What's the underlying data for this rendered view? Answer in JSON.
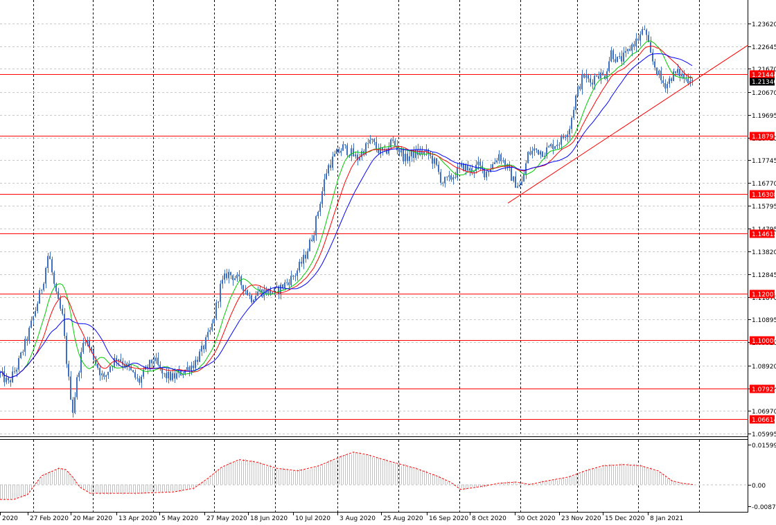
{
  "chart_data": [
    {
      "type": "candlestick",
      "instrument_panel": "price",
      "ylim": [
        1.05995,
        1.2362
      ],
      "y_ticks": [
        "1.23620",
        "1.22645",
        "1.21670",
        "1.20670",
        "1.19695",
        "1.18720",
        "1.17745",
        "1.16770",
        "1.15795",
        "1.14795",
        "1.13820",
        "1.12845",
        "1.11870",
        "1.10895",
        "1.09920",
        "1.08920",
        "1.07945",
        "1.06970",
        "1.05995"
      ],
      "x_labels": [
        "2020",
        "27 Feb 2020",
        "20 Mar 2020",
        "13 Apr 2020",
        "5 May 2020",
        "27 May 2020",
        "18 Jun 2020",
        "10 Jul 2020",
        "3 Aug 2020",
        "25 Aug 2020",
        "16 Sep 2020",
        "8 Oct 2020",
        "30 Oct 2020",
        "23 Nov 2020",
        "15 Dec 2020",
        "8 Jan 2021"
      ],
      "horizontal_levels": [
        {
          "value": 1.21444,
          "label": "1.21444",
          "color": "#ff0000"
        },
        {
          "value": 1.18793,
          "label": "1.18793",
          "color": "#ff0000"
        },
        {
          "value": 1.16308,
          "label": "1.16308",
          "color": "#ff0000"
        },
        {
          "value": 1.14612,
          "label": "1.14612",
          "color": "#ff0000"
        },
        {
          "value": 1.12007,
          "label": "1.12007",
          "color": "#ff0000"
        },
        {
          "value": 1.1,
          "label": "1.10000",
          "color": "#ff0000"
        },
        {
          "value": 1.07922,
          "label": "1.07922",
          "color": "#ff0000"
        },
        {
          "value": 1.06614,
          "label": "1.06614",
          "color": "#ff0000"
        }
      ],
      "current_price": {
        "value": 1.2134,
        "label": "1.21340",
        "color": "#000000"
      },
      "close_path": [
        [
          0,
          1.0855
        ],
        [
          12,
          1.0815
        ],
        [
          25,
          1.089
        ],
        [
          40,
          1.102
        ],
        [
          50,
          1.112
        ],
        [
          62,
          1.125
        ],
        [
          70,
          1.138
        ],
        [
          80,
          1.12
        ],
        [
          90,
          1.11
        ],
        [
          98,
          1.085
        ],
        [
          105,
          1.07
        ],
        [
          112,
          1.085
        ],
        [
          122,
          1.102
        ],
        [
          132,
          1.095
        ],
        [
          142,
          1.088
        ],
        [
          150,
          1.083
        ],
        [
          160,
          1.09
        ],
        [
          170,
          1.093
        ],
        [
          185,
          1.088
        ],
        [
          200,
          1.082
        ],
        [
          210,
          1.087
        ],
        [
          222,
          1.092
        ],
        [
          235,
          1.085
        ],
        [
          250,
          1.084
        ],
        [
          265,
          1.087
        ],
        [
          280,
          1.09
        ],
        [
          292,
          1.096
        ],
        [
          305,
          1.105
        ],
        [
          318,
          1.123
        ],
        [
          328,
          1.129
        ],
        [
          340,
          1.127
        ],
        [
          352,
          1.123
        ],
        [
          362,
          1.118
        ],
        [
          372,
          1.121
        ],
        [
          385,
          1.121
        ],
        [
          398,
          1.121
        ],
        [
          410,
          1.124
        ],
        [
          425,
          1.128
        ],
        [
          440,
          1.136
        ],
        [
          452,
          1.146
        ],
        [
          462,
          1.16
        ],
        [
          472,
          1.174
        ],
        [
          485,
          1.18
        ],
        [
          495,
          1.183
        ],
        [
          505,
          1.181
        ],
        [
          515,
          1.178
        ],
        [
          525,
          1.182
        ],
        [
          535,
          1.186
        ],
        [
          545,
          1.182
        ],
        [
          555,
          1.18
        ],
        [
          565,
          1.186
        ],
        [
          575,
          1.182
        ],
        [
          585,
          1.178
        ],
        [
          595,
          1.18
        ],
        [
          608,
          1.181
        ],
        [
          618,
          1.18
        ],
        [
          628,
          1.176
        ],
        [
          638,
          1.168
        ],
        [
          648,
          1.169
        ],
        [
          658,
          1.172
        ],
        [
          668,
          1.175
        ],
        [
          678,
          1.173
        ],
        [
          690,
          1.175
        ],
        [
          700,
          1.172
        ],
        [
          712,
          1.176
        ],
        [
          720,
          1.18
        ],
        [
          732,
          1.174
        ],
        [
          742,
          1.168
        ],
        [
          752,
          1.166
        ],
        [
          762,
          1.18
        ],
        [
          772,
          1.182
        ],
        [
          785,
          1.181
        ],
        [
          798,
          1.184
        ],
        [
          810,
          1.186
        ],
        [
          822,
          1.192
        ],
        [
          832,
          1.206
        ],
        [
          842,
          1.214
        ],
        [
          852,
          1.211
        ],
        [
          862,
          1.215
        ],
        [
          872,
          1.213
        ],
        [
          882,
          1.224
        ],
        [
          892,
          1.22
        ],
        [
          902,
          1.222
        ],
        [
          912,
          1.227
        ],
        [
          922,
          1.23
        ],
        [
          930,
          1.234
        ],
        [
          940,
          1.221
        ],
        [
          948,
          1.216
        ],
        [
          955,
          1.211
        ],
        [
          962,
          1.21
        ],
        [
          970,
          1.214
        ],
        [
          980,
          1.215
        ],
        [
          990,
          1.212
        ],
        [
          1000,
          1.2134
        ]
      ],
      "moving_averages": [
        {
          "name": "",
          "color": "#00cc00",
          "period": 20
        },
        {
          "name": "",
          "color": "#ff0000",
          "period": 40
        },
        {
          "name": "",
          "color": "#0000ff",
          "period": 70
        }
      ],
      "trendline": {
        "from": [
          733,
          1.159
        ],
        "to": [
          1080,
          1.227
        ],
        "color": "#ff0000"
      }
    },
    {
      "type": "histogram",
      "instrument_panel": "oscillator",
      "ylim": [
        -0.00874,
        0.015993
      ],
      "y_ticks": [
        "0.015993",
        "0.00",
        "-0.00874"
      ],
      "histogram_color": "#c0c0c0",
      "signal_color": "#ff0000",
      "signal_points": [
        [
          0,
          -0.006
        ],
        [
          20,
          -0.006
        ],
        [
          40,
          -0.004
        ],
        [
          60,
          0.0035
        ],
        [
          85,
          0.0065
        ],
        [
          95,
          0.006
        ],
        [
          105,
          0.003
        ],
        [
          115,
          -0.001
        ],
        [
          130,
          -0.0035
        ],
        [
          160,
          -0.0035
        ],
        [
          200,
          -0.0035
        ],
        [
          250,
          -0.003
        ],
        [
          280,
          -0.0015
        ],
        [
          300,
          0.0025
        ],
        [
          320,
          0.007
        ],
        [
          345,
          0.01
        ],
        [
          370,
          0.009
        ],
        [
          400,
          0.0065
        ],
        [
          430,
          0.0055
        ],
        [
          460,
          0.0075
        ],
        [
          490,
          0.011
        ],
        [
          510,
          0.013
        ],
        [
          530,
          0.012
        ],
        [
          560,
          0.0095
        ],
        [
          600,
          0.0065
        ],
        [
          630,
          0.0035
        ],
        [
          650,
          0.001
        ],
        [
          665,
          -0.002
        ],
        [
          690,
          -0.001
        ],
        [
          720,
          0.0005
        ],
        [
          745,
          0.001
        ],
        [
          765,
          0.0
        ],
        [
          790,
          0.0015
        ],
        [
          820,
          0.003
        ],
        [
          845,
          0.0055
        ],
        [
          870,
          0.0075
        ],
        [
          900,
          0.008
        ],
        [
          925,
          0.0075
        ],
        [
          950,
          0.0055
        ],
        [
          970,
          0.0015
        ],
        [
          985,
          0.0005
        ],
        [
          1000,
          0.0
        ]
      ]
    }
  ]
}
